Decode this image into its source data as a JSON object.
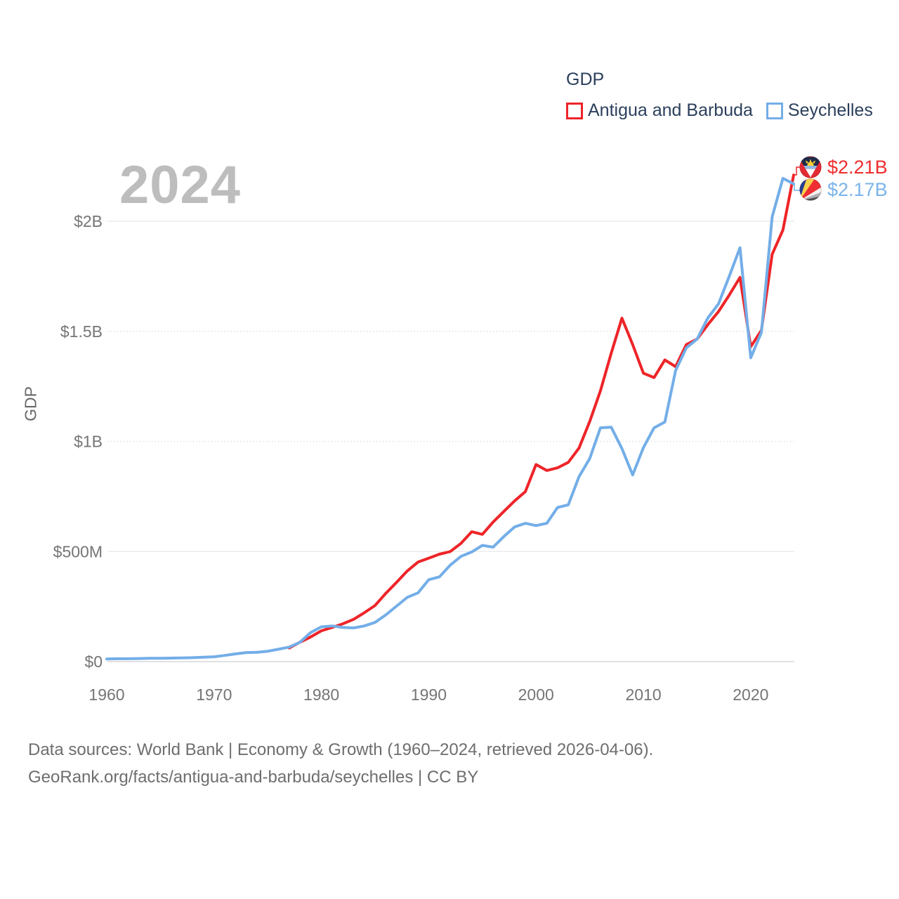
{
  "watermark": "2024",
  "y_axis_title": "GDP",
  "legend": {
    "title": "GDP",
    "items": [
      {
        "label": "Antigua and Barbuda",
        "color": "#ee2428"
      },
      {
        "label": "Seychelles",
        "color": "#73aee8"
      }
    ]
  },
  "end_labels": [
    {
      "series": "Antigua and Barbuda",
      "value": "$2.21B",
      "color": "#ee2d2d",
      "flag": "antigua-and-barbuda"
    },
    {
      "series": "Seychelles",
      "value": "$2.17B",
      "color": "#7ab4ea",
      "flag": "seychelles"
    }
  ],
  "footer": {
    "line1": "Data sources: World Bank | Economy & Growth (1960–2024, retrieved 2026-04-06).",
    "line2": "GeoRank.org/facts/antigua-and-barbuda/seychelles | CC BY"
  },
  "chart_data": {
    "type": "line",
    "title": "GDP",
    "xlabel": "",
    "ylabel": "GDP",
    "unit": "million USD",
    "xlim": [
      1960,
      2024
    ],
    "ylim_musd": [
      0,
      2300
    ],
    "grid": "horizontal-only",
    "legend_position": "top-right",
    "x_ticks": [
      1960,
      1970,
      1980,
      1990,
      2000,
      2010,
      2020
    ],
    "y_ticks": [
      {
        "v": 0,
        "label": "$0",
        "style": "axis"
      },
      {
        "v": 500,
        "label": "$500M",
        "style": "solid"
      },
      {
        "v": 1000,
        "label": "$1B",
        "style": "dotted"
      },
      {
        "v": 1500,
        "label": "$1.5B",
        "style": "dotted"
      },
      {
        "v": 2000,
        "label": "$2B",
        "style": "solid"
      }
    ],
    "series": [
      {
        "name": "Antigua and Barbuda",
        "color": "#ee2428",
        "start_year": 1977,
        "end_value_label": "$2.21B",
        "values_musd": [
          62,
          88,
          112,
          140,
          155,
          172,
          192,
          222,
          255,
          310,
          360,
          412,
          452,
          470,
          488,
          500,
          537,
          590,
          578,
          634,
          682,
          730,
          772,
          895,
          868,
          880,
          905,
          970,
          1090,
          1230,
          1400,
          1560,
          1440,
          1310,
          1290,
          1370,
          1340,
          1440,
          1465,
          1530,
          1590,
          1665,
          1745,
          1430,
          1505,
          1850,
          1960,
          2210
        ]
      },
      {
        "name": "Seychelles",
        "color": "#73aee8",
        "start_year": 1960,
        "end_value_label": "$2.17B",
        "values_musd": [
          12,
          13,
          13,
          14,
          15,
          15,
          16,
          17,
          18,
          20,
          22,
          28,
          35,
          41,
          42,
          47,
          56,
          66,
          88,
          132,
          158,
          162,
          155,
          153,
          162,
          178,
          212,
          252,
          292,
          312,
          372,
          385,
          438,
          478,
          498,
          528,
          520,
          568,
          612,
          628,
          618,
          628,
          700,
          712,
          840,
          922,
          1062,
          1065,
          968,
          848,
          972,
          1062,
          1088,
          1322,
          1425,
          1465,
          1560,
          1625,
          1750,
          1880,
          1380,
          1495,
          2020,
          2195,
          2170
        ]
      }
    ]
  }
}
